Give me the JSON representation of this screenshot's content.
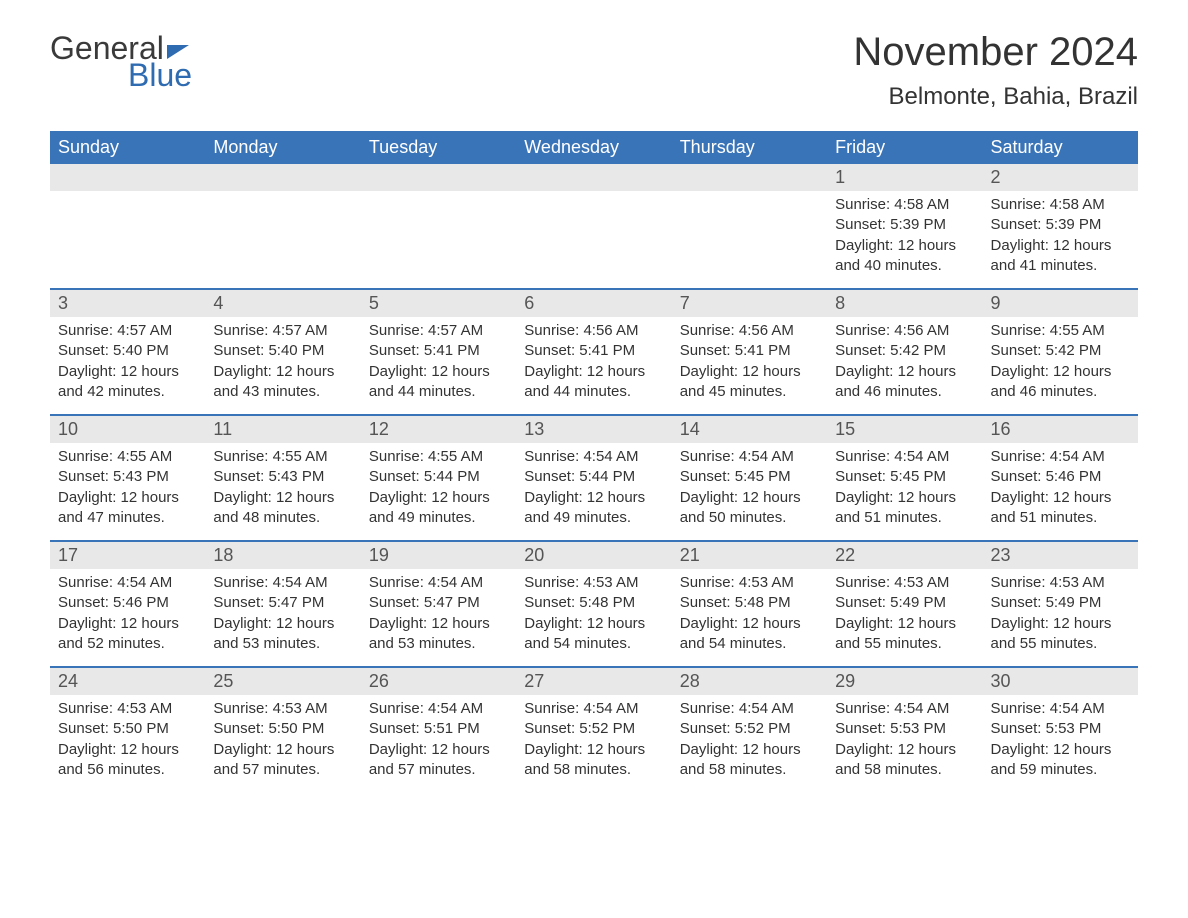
{
  "logo": {
    "text1": "General",
    "text2": "Blue"
  },
  "title": "November 2024",
  "location": "Belmonte, Bahia, Brazil",
  "colors": {
    "header_bg": "#3a74b8",
    "header_text": "#ffffff",
    "day_number_bg": "#e8e8e8",
    "day_number_text": "#555555",
    "body_text": "#333333",
    "border": "#3a74b8",
    "logo_blue": "#2e6bb0",
    "logo_gray": "#3a3a3a"
  },
  "fonts": {
    "title_size": 40,
    "location_size": 24,
    "header_size": 18,
    "daynum_size": 18,
    "content_size": 15
  },
  "day_names": [
    "Sunday",
    "Monday",
    "Tuesday",
    "Wednesday",
    "Thursday",
    "Friday",
    "Saturday"
  ],
  "weeks": [
    [
      {
        "day": "",
        "sunrise": "",
        "sunset": "",
        "daylight": ""
      },
      {
        "day": "",
        "sunrise": "",
        "sunset": "",
        "daylight": ""
      },
      {
        "day": "",
        "sunrise": "",
        "sunset": "",
        "daylight": ""
      },
      {
        "day": "",
        "sunrise": "",
        "sunset": "",
        "daylight": ""
      },
      {
        "day": "",
        "sunrise": "",
        "sunset": "",
        "daylight": ""
      },
      {
        "day": "1",
        "sunrise": "Sunrise: 4:58 AM",
        "sunset": "Sunset: 5:39 PM",
        "daylight": "Daylight: 12 hours and 40 minutes."
      },
      {
        "day": "2",
        "sunrise": "Sunrise: 4:58 AM",
        "sunset": "Sunset: 5:39 PM",
        "daylight": "Daylight: 12 hours and 41 minutes."
      }
    ],
    [
      {
        "day": "3",
        "sunrise": "Sunrise: 4:57 AM",
        "sunset": "Sunset: 5:40 PM",
        "daylight": "Daylight: 12 hours and 42 minutes."
      },
      {
        "day": "4",
        "sunrise": "Sunrise: 4:57 AM",
        "sunset": "Sunset: 5:40 PM",
        "daylight": "Daylight: 12 hours and 43 minutes."
      },
      {
        "day": "5",
        "sunrise": "Sunrise: 4:57 AM",
        "sunset": "Sunset: 5:41 PM",
        "daylight": "Daylight: 12 hours and 44 minutes."
      },
      {
        "day": "6",
        "sunrise": "Sunrise: 4:56 AM",
        "sunset": "Sunset: 5:41 PM",
        "daylight": "Daylight: 12 hours and 44 minutes."
      },
      {
        "day": "7",
        "sunrise": "Sunrise: 4:56 AM",
        "sunset": "Sunset: 5:41 PM",
        "daylight": "Daylight: 12 hours and 45 minutes."
      },
      {
        "day": "8",
        "sunrise": "Sunrise: 4:56 AM",
        "sunset": "Sunset: 5:42 PM",
        "daylight": "Daylight: 12 hours and 46 minutes."
      },
      {
        "day": "9",
        "sunrise": "Sunrise: 4:55 AM",
        "sunset": "Sunset: 5:42 PM",
        "daylight": "Daylight: 12 hours and 46 minutes."
      }
    ],
    [
      {
        "day": "10",
        "sunrise": "Sunrise: 4:55 AM",
        "sunset": "Sunset: 5:43 PM",
        "daylight": "Daylight: 12 hours and 47 minutes."
      },
      {
        "day": "11",
        "sunrise": "Sunrise: 4:55 AM",
        "sunset": "Sunset: 5:43 PM",
        "daylight": "Daylight: 12 hours and 48 minutes."
      },
      {
        "day": "12",
        "sunrise": "Sunrise: 4:55 AM",
        "sunset": "Sunset: 5:44 PM",
        "daylight": "Daylight: 12 hours and 49 minutes."
      },
      {
        "day": "13",
        "sunrise": "Sunrise: 4:54 AM",
        "sunset": "Sunset: 5:44 PM",
        "daylight": "Daylight: 12 hours and 49 minutes."
      },
      {
        "day": "14",
        "sunrise": "Sunrise: 4:54 AM",
        "sunset": "Sunset: 5:45 PM",
        "daylight": "Daylight: 12 hours and 50 minutes."
      },
      {
        "day": "15",
        "sunrise": "Sunrise: 4:54 AM",
        "sunset": "Sunset: 5:45 PM",
        "daylight": "Daylight: 12 hours and 51 minutes."
      },
      {
        "day": "16",
        "sunrise": "Sunrise: 4:54 AM",
        "sunset": "Sunset: 5:46 PM",
        "daylight": "Daylight: 12 hours and 51 minutes."
      }
    ],
    [
      {
        "day": "17",
        "sunrise": "Sunrise: 4:54 AM",
        "sunset": "Sunset: 5:46 PM",
        "daylight": "Daylight: 12 hours and 52 minutes."
      },
      {
        "day": "18",
        "sunrise": "Sunrise: 4:54 AM",
        "sunset": "Sunset: 5:47 PM",
        "daylight": "Daylight: 12 hours and 53 minutes."
      },
      {
        "day": "19",
        "sunrise": "Sunrise: 4:54 AM",
        "sunset": "Sunset: 5:47 PM",
        "daylight": "Daylight: 12 hours and 53 minutes."
      },
      {
        "day": "20",
        "sunrise": "Sunrise: 4:53 AM",
        "sunset": "Sunset: 5:48 PM",
        "daylight": "Daylight: 12 hours and 54 minutes."
      },
      {
        "day": "21",
        "sunrise": "Sunrise: 4:53 AM",
        "sunset": "Sunset: 5:48 PM",
        "daylight": "Daylight: 12 hours and 54 minutes."
      },
      {
        "day": "22",
        "sunrise": "Sunrise: 4:53 AM",
        "sunset": "Sunset: 5:49 PM",
        "daylight": "Daylight: 12 hours and 55 minutes."
      },
      {
        "day": "23",
        "sunrise": "Sunrise: 4:53 AM",
        "sunset": "Sunset: 5:49 PM",
        "daylight": "Daylight: 12 hours and 55 minutes."
      }
    ],
    [
      {
        "day": "24",
        "sunrise": "Sunrise: 4:53 AM",
        "sunset": "Sunset: 5:50 PM",
        "daylight": "Daylight: 12 hours and 56 minutes."
      },
      {
        "day": "25",
        "sunrise": "Sunrise: 4:53 AM",
        "sunset": "Sunset: 5:50 PM",
        "daylight": "Daylight: 12 hours and 57 minutes."
      },
      {
        "day": "26",
        "sunrise": "Sunrise: 4:54 AM",
        "sunset": "Sunset: 5:51 PM",
        "daylight": "Daylight: 12 hours and 57 minutes."
      },
      {
        "day": "27",
        "sunrise": "Sunrise: 4:54 AM",
        "sunset": "Sunset: 5:52 PM",
        "daylight": "Daylight: 12 hours and 58 minutes."
      },
      {
        "day": "28",
        "sunrise": "Sunrise: 4:54 AM",
        "sunset": "Sunset: 5:52 PM",
        "daylight": "Daylight: 12 hours and 58 minutes."
      },
      {
        "day": "29",
        "sunrise": "Sunrise: 4:54 AM",
        "sunset": "Sunset: 5:53 PM",
        "daylight": "Daylight: 12 hours and 58 minutes."
      },
      {
        "day": "30",
        "sunrise": "Sunrise: 4:54 AM",
        "sunset": "Sunset: 5:53 PM",
        "daylight": "Daylight: 12 hours and 59 minutes."
      }
    ]
  ]
}
